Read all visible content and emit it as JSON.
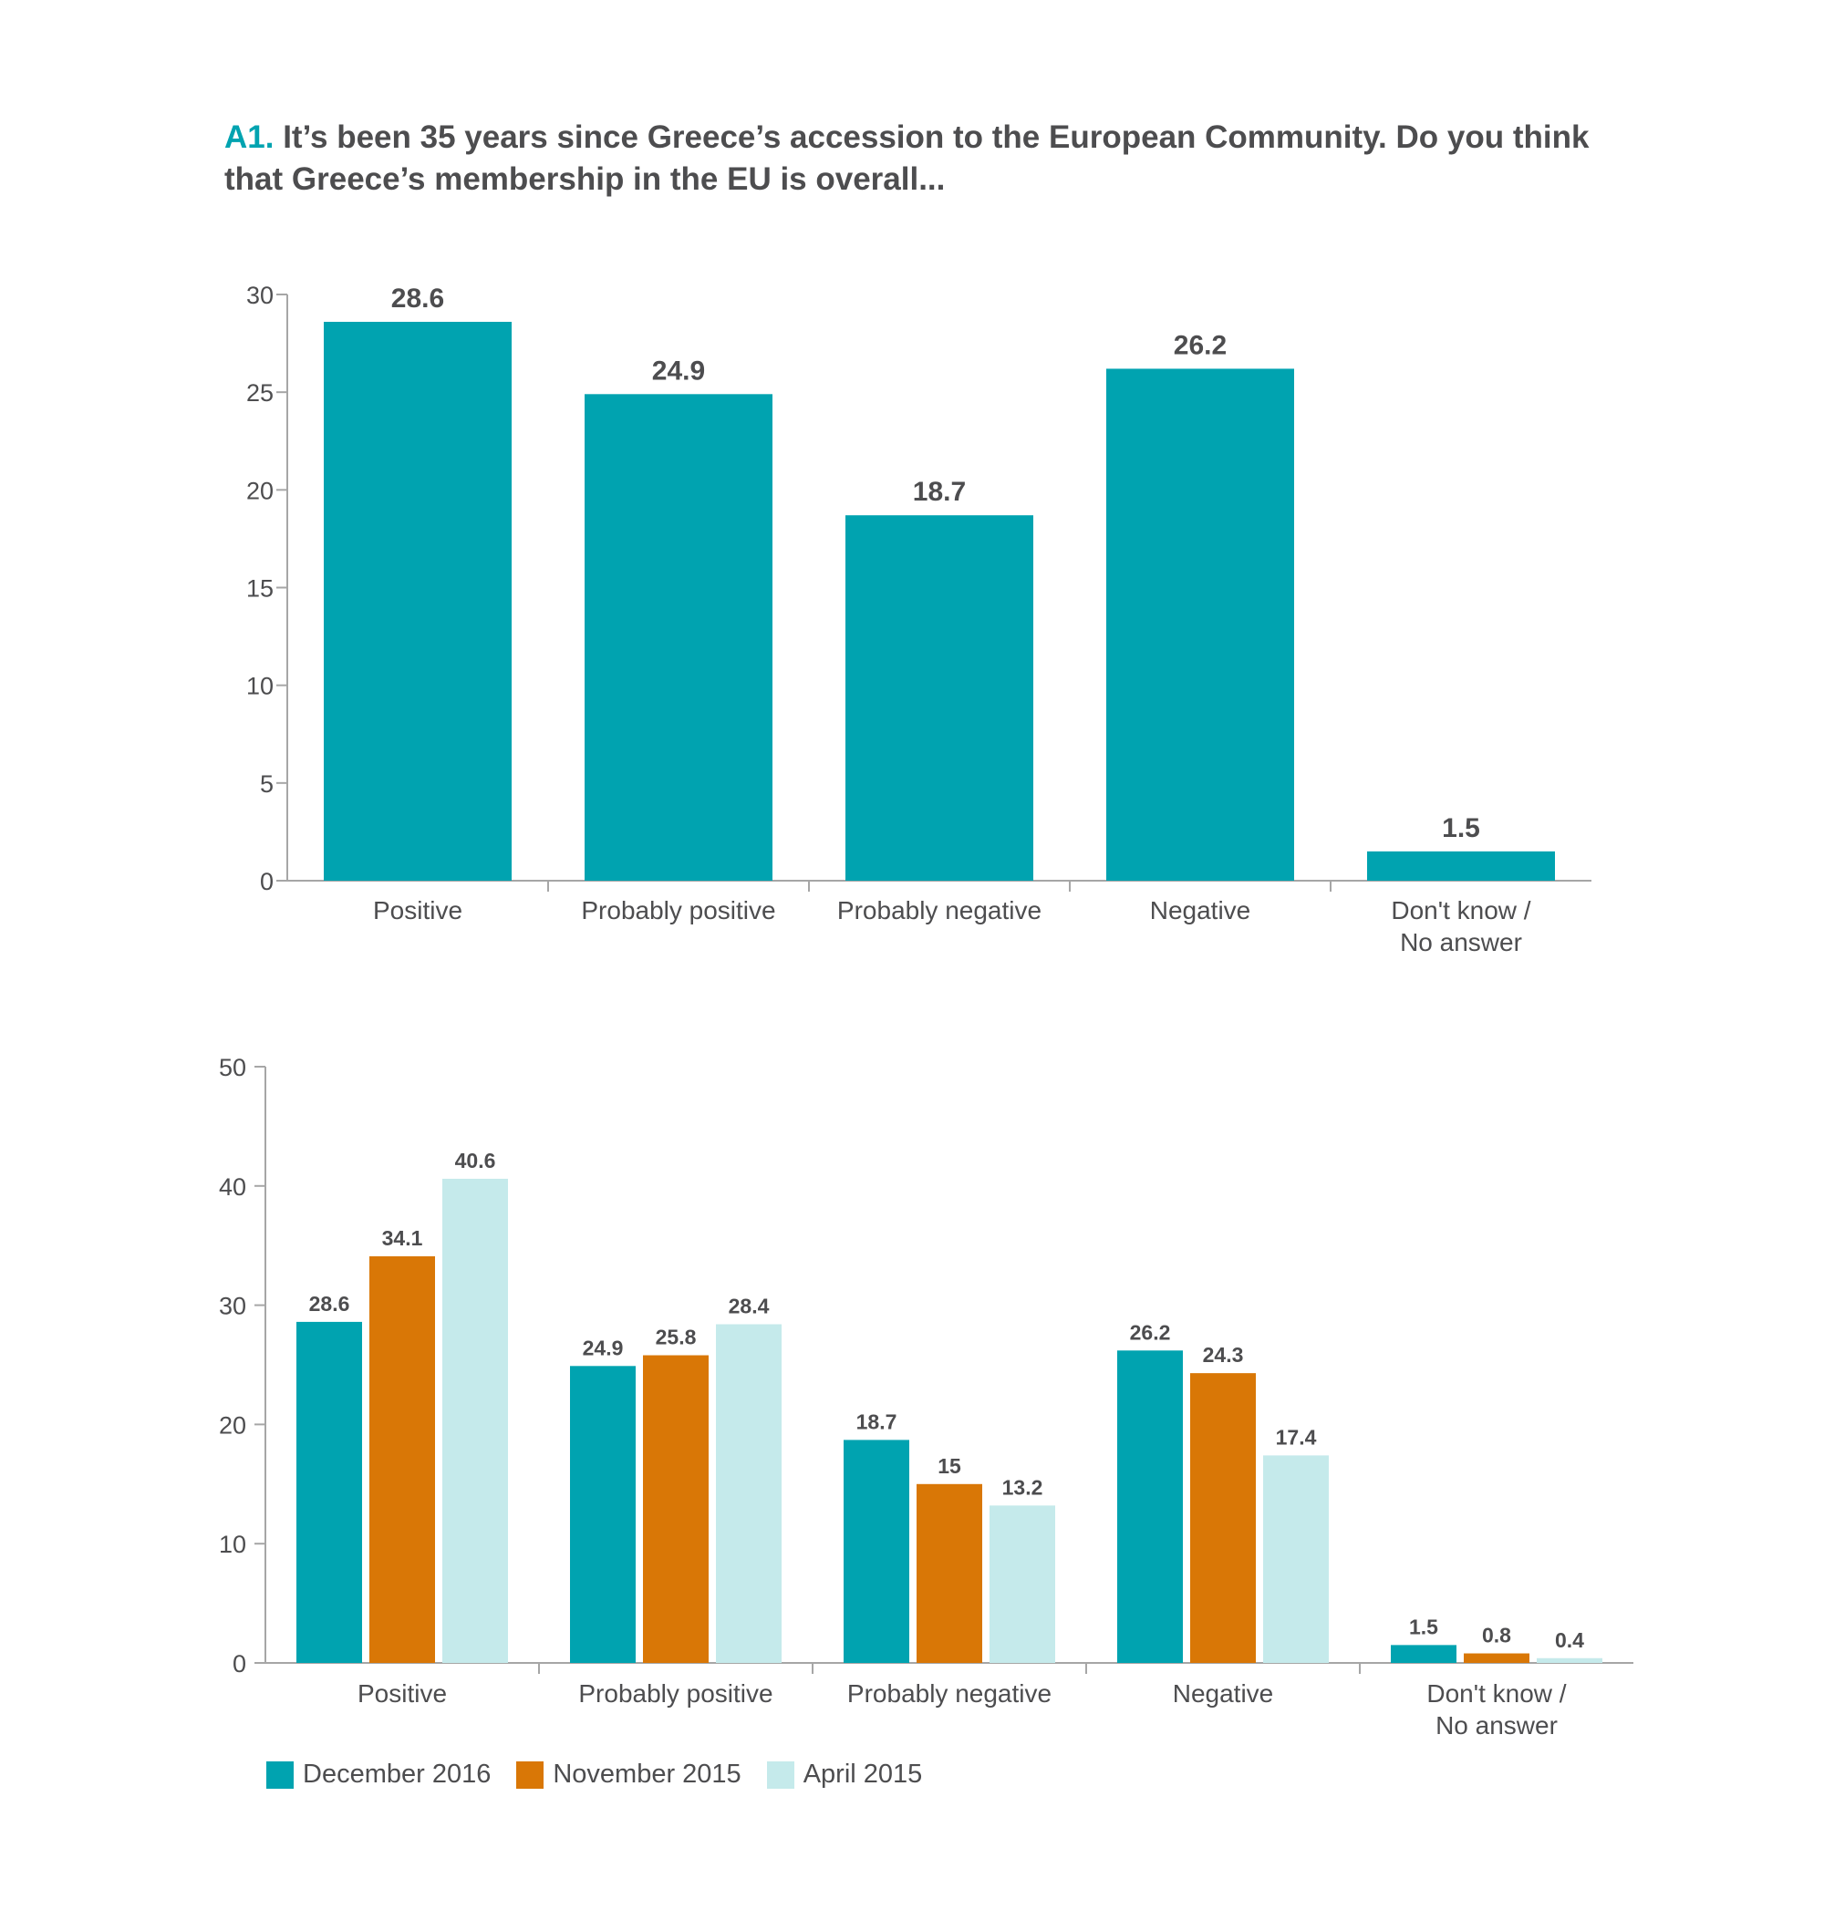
{
  "title": {
    "prefix": "A1.",
    "text": "It’s been 35 years since Greece’s accession to the European Community. Do you think that Greece’s membership in the EU is overall..."
  },
  "colors": {
    "teal": "#00a3b0",
    "orange": "#d97706",
    "lightblue": "#c5eaeb",
    "text": "#4d4d4f",
    "axis": "#a6a6a6"
  },
  "chart_data": [
    {
      "type": "bar",
      "categories": [
        "Positive",
        "Probably positive",
        "Probably negative",
        "Negative",
        "Don't know / No answer"
      ],
      "values": [
        28.6,
        24.9,
        18.7,
        26.2,
        1.5
      ],
      "ylim": [
        0,
        30
      ],
      "yticks": [
        0,
        5,
        10,
        15,
        20,
        25,
        30
      ],
      "grid": false,
      "legend": "none"
    },
    {
      "type": "bar",
      "categories": [
        "Positive",
        "Probably positive",
        "Probably negative",
        "Negative",
        "Don't know / No answer"
      ],
      "series": [
        {
          "name": "December 2016",
          "color": "#00a3b0",
          "values": [
            28.6,
            24.9,
            18.7,
            26.2,
            1.5
          ]
        },
        {
          "name": "November 2015",
          "color": "#d97706",
          "values": [
            34.1,
            25.8,
            15,
            24.3,
            0.8
          ]
        },
        {
          "name": "April 2015",
          "color": "#c5eaeb",
          "values": [
            40.6,
            28.4,
            13.2,
            17.4,
            0.4
          ]
        }
      ],
      "ylim": [
        0,
        50
      ],
      "yticks": [
        0,
        10,
        20,
        30,
        40,
        50
      ],
      "grid": false,
      "legend": "bottom-left"
    }
  ]
}
